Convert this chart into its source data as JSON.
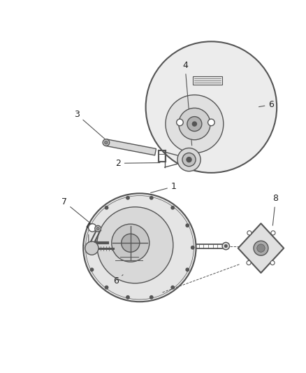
{
  "bg_color": "#ffffff",
  "line_color": "#555555",
  "label_color": "#222222"
}
